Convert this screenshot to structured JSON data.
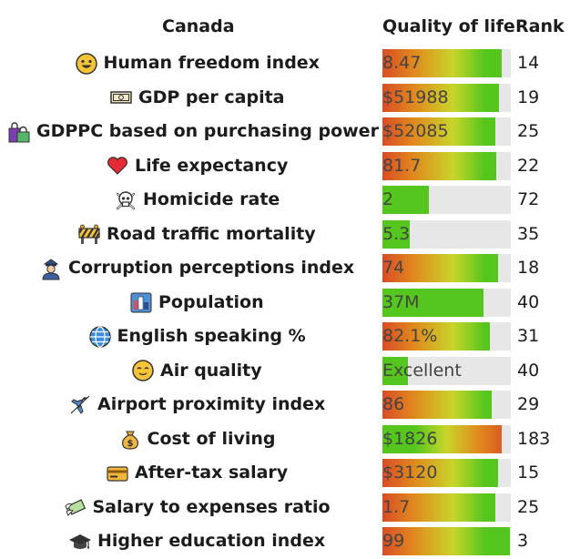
{
  "chart_data": {
    "type": "bar",
    "title": "Canada",
    "column_headers": {
      "value": "Quality of life",
      "rank": "Rank"
    },
    "rows": [
      {
        "label": "Human freedom index",
        "icon": "grinning-face-icon",
        "value_text": "8.47",
        "rank": "14",
        "score": 0.93,
        "gradient": "red-to-green"
      },
      {
        "label": "GDP per capita",
        "icon": "banknote-icon",
        "value_text": "$51988",
        "rank": "19",
        "score": 0.91,
        "gradient": "red-to-green"
      },
      {
        "label": "GDPPC based on purchasing power",
        "icon": "shopping-bags-icon",
        "value_text": "$52085",
        "rank": "25",
        "score": 0.88,
        "gradient": "red-to-green"
      },
      {
        "label": "Life expectancy",
        "icon": "heart-icon",
        "value_text": "81.7",
        "rank": "22",
        "score": 0.89,
        "gradient": "red-to-green"
      },
      {
        "label": "Homicide rate",
        "icon": "skull-crossbones-icon",
        "value_text": "2",
        "rank": "72",
        "score": 0.36,
        "gradient": "green"
      },
      {
        "label": "Road traffic mortality",
        "icon": "construction-barrier-icon",
        "value_text": "5.3",
        "rank": "35",
        "score": 0.21,
        "gradient": "green"
      },
      {
        "label": "Corruption perceptions index",
        "icon": "police-officer-icon",
        "value_text": "74",
        "rank": "18",
        "score": 0.9,
        "gradient": "red-to-green"
      },
      {
        "label": "Population",
        "icon": "cityscape-icon",
        "value_text": "37M",
        "rank": "40",
        "score": 0.79,
        "gradient": "green"
      },
      {
        "label": "English speaking %",
        "icon": "globe-icon",
        "value_text": "82.1%",
        "rank": "31",
        "score": 0.84,
        "gradient": "red-to-green"
      },
      {
        "label": "Air quality",
        "icon": "relieved-face-icon",
        "value_text": "Excellent",
        "rank": "40",
        "score": 0.2,
        "gradient": "green"
      },
      {
        "label": "Airport proximity index",
        "icon": "airplane-icon",
        "value_text": "86",
        "rank": "29",
        "score": 0.85,
        "gradient": "red-to-green"
      },
      {
        "label": "Cost of living",
        "icon": "money-bag-icon",
        "value_text": "$1826",
        "rank": "183",
        "score": 0.93,
        "gradient": "green-to-red"
      },
      {
        "label": "After-tax salary",
        "icon": "credit-card-icon",
        "value_text": "$3120",
        "rank": "15",
        "score": 0.9,
        "gradient": "red-to-green"
      },
      {
        "label": "Salary to expenses ratio",
        "icon": "money-with-wings-icon",
        "value_text": "1.7",
        "rank": "25",
        "score": 0.88,
        "gradient": "red-to-green"
      },
      {
        "label": "Higher education index",
        "icon": "graduation-cap-icon",
        "value_text": "99",
        "rank": "3",
        "score": 0.99,
        "gradient": "red-to-green"
      }
    ],
    "colors": {
      "red": "#d94c26",
      "orange": "#e08a1e",
      "yellow": "#c9d52a",
      "green": "#54c61d",
      "track": "#e7e7e7"
    }
  }
}
